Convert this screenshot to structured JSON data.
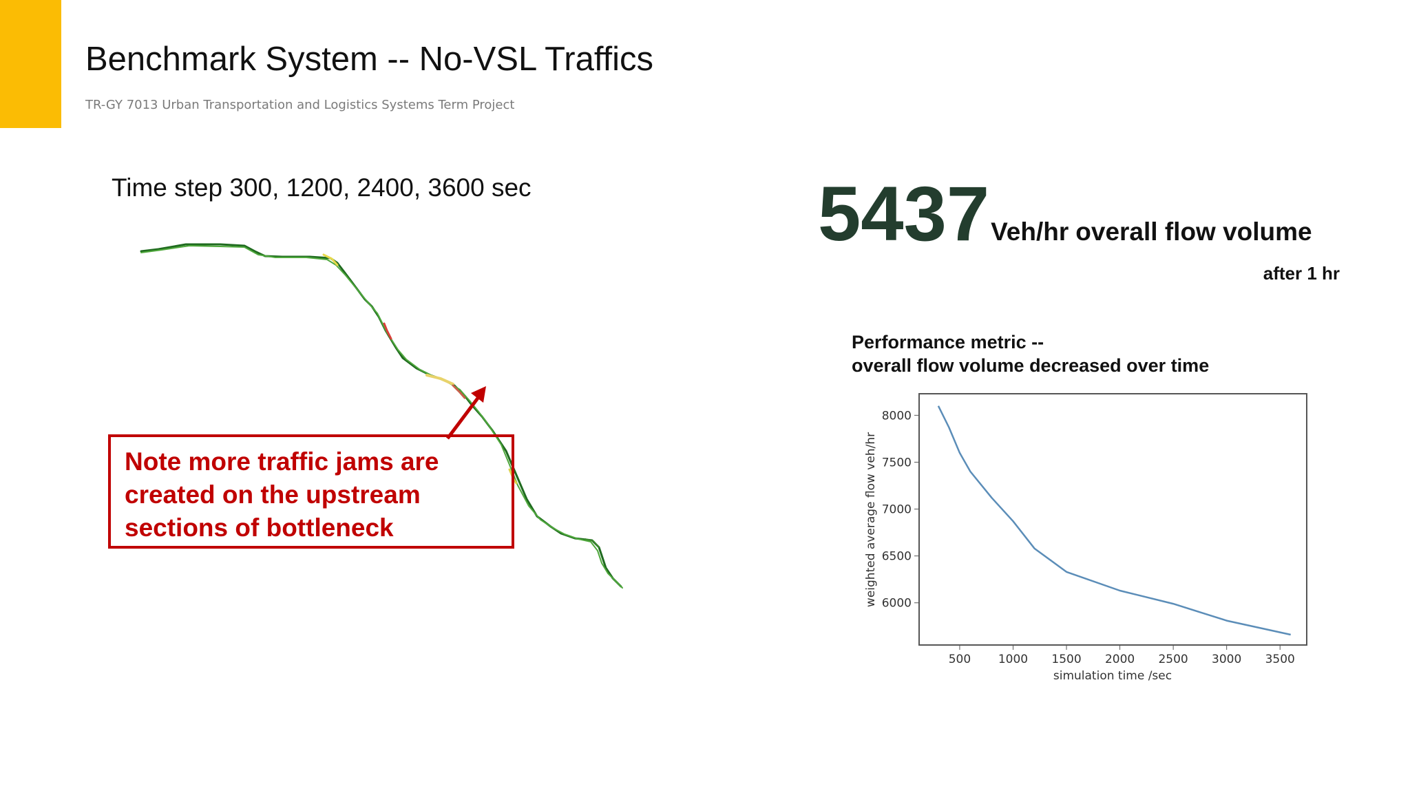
{
  "slide": {
    "title": "Benchmark System -- No-VSL Traffics",
    "subtitle": "TR-GY 7013 Urban Transportation and Logistics Systems Term Project",
    "accent_color": "#FBBC04"
  },
  "left_panel": {
    "time_step_label": "Time step 300, 1200, 2400, 3600 sec",
    "callout": {
      "lines": [
        "Note more traffic jams are",
        "created on the upstream",
        "sections of bottleneck"
      ],
      "color": "#C00000"
    }
  },
  "metric": {
    "value": "5437",
    "unit": "Veh/hr",
    "description": "overall flow volume",
    "note": "after 1 hr",
    "value_color": "#233D2E"
  },
  "performance": {
    "title_line1": "Performance metric --",
    "title_line2": "overall flow volume decreased over time"
  },
  "chart_data": {
    "type": "line",
    "title": "",
    "xlabel": "simulation time /sec",
    "ylabel": "weighted average flow veh/hr",
    "xlim": [
      120,
      3750
    ],
    "ylim": [
      5550,
      8230
    ],
    "x_ticks": [
      500,
      1000,
      1500,
      2000,
      2500,
      3000,
      3500
    ],
    "y_ticks": [
      6000,
      6500,
      7000,
      7500,
      8000
    ],
    "series": [
      {
        "color": "#5B8DB8",
        "x": [
          300,
          400,
          500,
          600,
          800,
          1000,
          1200,
          1500,
          2000,
          2500,
          3000,
          3600
        ],
        "y": [
          8100,
          7870,
          7600,
          7400,
          7120,
          6870,
          6580,
          6330,
          6130,
          5990,
          5810,
          5660
        ]
      }
    ],
    "grid": false
  }
}
